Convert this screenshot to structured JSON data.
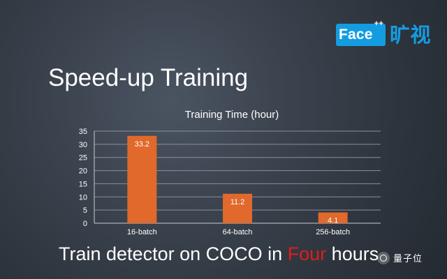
{
  "logo": {
    "brand": "Face",
    "brand_sup": "++",
    "brand_cn": "旷视"
  },
  "slide": {
    "title": "Speed-up Training",
    "bottom_prefix": "Train detector on COCO in ",
    "bottom_highlight": "Four",
    "bottom_suffix": " hours"
  },
  "watermark": {
    "icon": "wechat-icon",
    "text": "量子位"
  },
  "colors": {
    "bar": "#e0692b",
    "highlight": "#e11c1c",
    "logo_blue": "#149ce1"
  },
  "chart_data": {
    "type": "bar",
    "title": "Training Time (hour)",
    "categories": [
      "16-batch",
      "64-batch",
      "256-batch"
    ],
    "values": [
      33.2,
      11.2,
      4.1
    ],
    "data_labels": [
      "33.2",
      "11.2",
      "4.1"
    ],
    "xlabel": "",
    "ylabel": "",
    "ylim": [
      0,
      35
    ],
    "yticks": [
      0,
      5,
      10,
      15,
      20,
      25,
      30,
      35
    ],
    "grid": true,
    "legend": "none"
  }
}
